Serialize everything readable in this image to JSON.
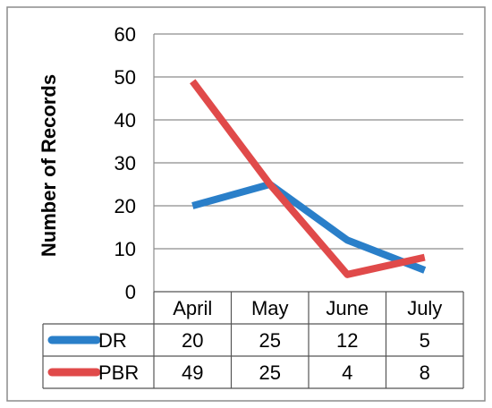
{
  "chart_data": {
    "type": "line",
    "ylabel": "Number of Records",
    "ylim": [
      0,
      60
    ],
    "yticks": [
      0,
      10,
      20,
      30,
      40,
      50,
      60
    ],
    "categories": [
      "April",
      "May",
      "June",
      "July"
    ],
    "grid": true,
    "legend": "data-table",
    "series": [
      {
        "name": "DR",
        "values": [
          20,
          25,
          12,
          5
        ],
        "color": "#2a7fc9"
      },
      {
        "name": "PBR",
        "values": [
          49,
          25,
          4,
          8
        ],
        "color": "#e04a4a"
      }
    ]
  }
}
